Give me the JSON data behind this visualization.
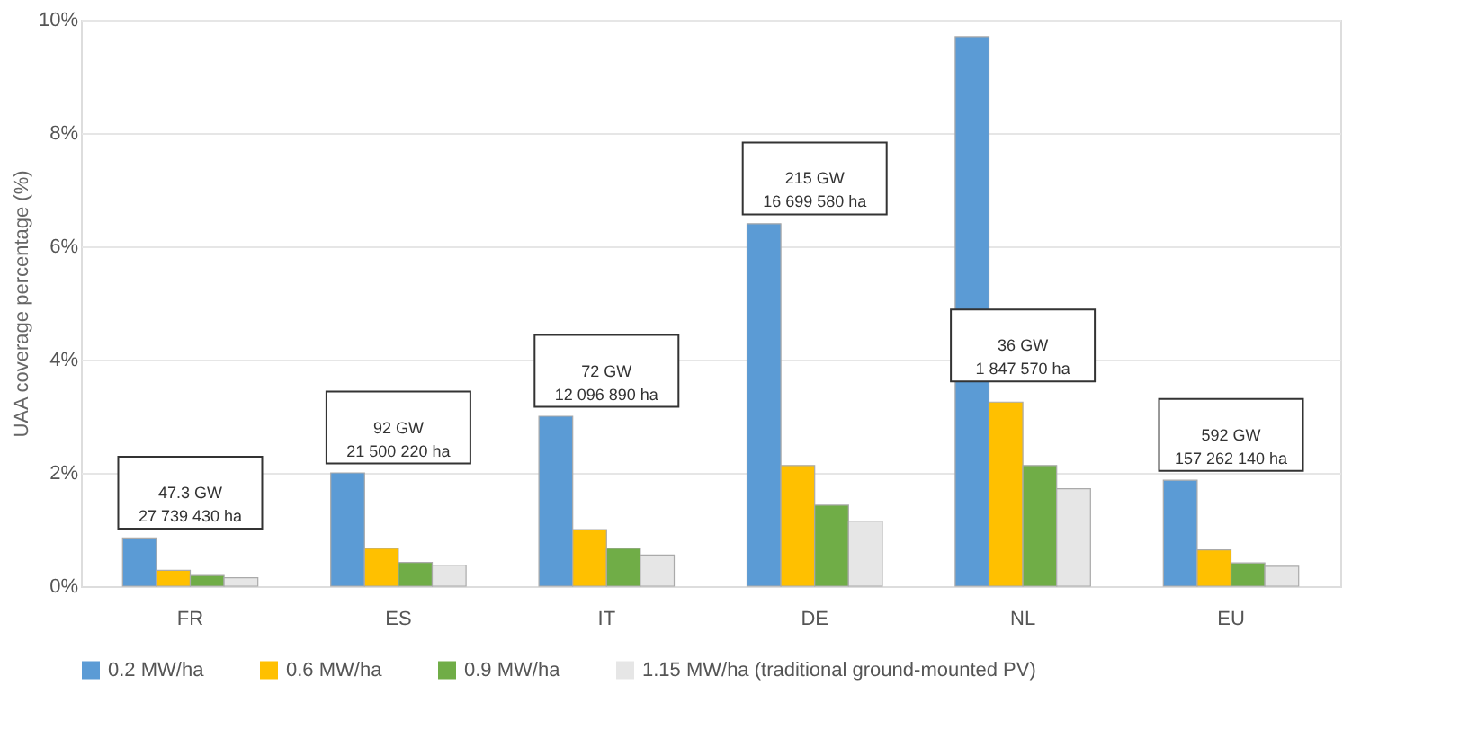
{
  "chart_data": {
    "type": "bar",
    "ylabel": "UAA coverage percentage (%)",
    "categories": [
      "FR",
      "ES",
      "IT",
      "DE",
      "NL",
      "EU"
    ],
    "series": [
      {
        "name": "0.2 MW/ha",
        "color": "#5b9bd5",
        "values": [
          0.85,
          2.0,
          3.0,
          6.4,
          9.7,
          1.87
        ]
      },
      {
        "name": "0.6 MW/ha",
        "color": "#ffc000",
        "values": [
          0.28,
          0.67,
          1.0,
          2.13,
          3.25,
          0.64
        ]
      },
      {
        "name": "0.9 MW/ha",
        "color": "#70ad47",
        "values": [
          0.19,
          0.42,
          0.67,
          1.43,
          2.13,
          0.41
        ]
      },
      {
        "name": "1.15 MW/ha (traditional ground-mounted PV)",
        "color": "#e6e6e6",
        "values": [
          0.15,
          0.37,
          0.55,
          1.15,
          1.72,
          0.35
        ]
      }
    ],
    "ylim": [
      0,
      10
    ],
    "yticks": [
      {
        "value": 0,
        "label": "0%"
      },
      {
        "value": 2,
        "label": "2%"
      },
      {
        "value": 4,
        "label": "4%"
      },
      {
        "value": 6,
        "label": "6%"
      },
      {
        "value": 8,
        "label": "8%"
      },
      {
        "value": 10,
        "label": "10%"
      }
    ],
    "grid": "y",
    "legend": "bottom",
    "annotations": [
      "47.3 GW\n27 739 430 ha",
      "92 GW\n21 500 220 ha",
      "72 GW\n12 096 890 ha",
      "215 GW\n16 699 580 ha",
      "36 GW\n1 847 570 ha",
      "592 GW\n157 262 140 ha"
    ]
  }
}
